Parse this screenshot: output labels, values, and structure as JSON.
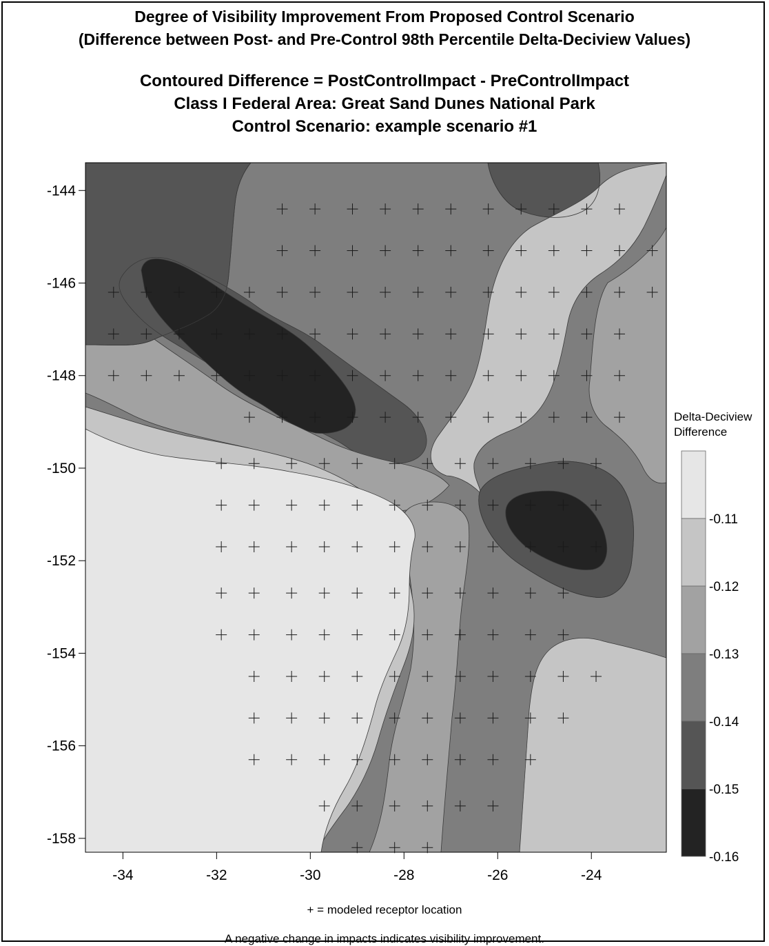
{
  "chart_data": {
    "type": "contour",
    "title": "Degree of Visibility Improvement From Proposed Control Scenario",
    "subtitle": "(Difference between Post- and Pre-Control 98th Percentile Delta-Deciview Values)",
    "subtitle_lines": [
      "Contoured Difference = PostControlImpact - PreControlImpact",
      "Class I Federal Area: Great Sand Dunes National Park",
      "Control Scenario: example scenario #1"
    ],
    "xlabel": "",
    "ylabel": "",
    "xlim": [
      -34.8,
      -22.4
    ],
    "ylim": [
      -158.3,
      -143.4
    ],
    "x_ticks": [
      -34,
      -32,
      -30,
      -28,
      -26,
      -24
    ],
    "y_ticks": [
      -144,
      -146,
      -148,
      -150,
      -152,
      -154,
      -156,
      -158
    ],
    "legend": {
      "title": [
        "Delta-Deciview",
        "Difference"
      ],
      "levels": [
        -0.11,
        -0.12,
        -0.13,
        -0.14,
        -0.15,
        -0.16
      ],
      "colors": [
        "#e6e6e6",
        "#c5c5c5",
        "#a2a2a2",
        "#7e7e7e",
        "#555555",
        "#232323"
      ]
    },
    "receptor_note": "+ = modeled receptor location",
    "footnote": "A negative change in impacts indicates visibility improvement.",
    "receptors": [
      [
        -34.2,
        -146.2
      ],
      [
        -33.5,
        -146.2
      ],
      [
        -32.8,
        -146.2
      ],
      [
        -32.0,
        -146.2
      ],
      [
        -31.3,
        -146.2
      ],
      [
        -30.6,
        -146.2
      ],
      [
        -34.2,
        -147.1
      ],
      [
        -33.5,
        -147.1
      ],
      [
        -32.8,
        -147.1
      ],
      [
        -32.0,
        -147.1
      ],
      [
        -31.3,
        -147.1
      ],
      [
        -30.6,
        -147.1
      ],
      [
        -34.2,
        -148.0
      ],
      [
        -33.5,
        -148.0
      ],
      [
        -32.8,
        -148.0
      ],
      [
        -32.0,
        -148.0
      ],
      [
        -31.3,
        -148.0
      ],
      [
        -30.6,
        -148.0
      ],
      [
        -31.3,
        -148.9
      ],
      [
        -30.6,
        -148.9
      ],
      [
        -30.6,
        -144.4
      ],
      [
        -29.9,
        -144.4
      ],
      [
        -29.1,
        -144.4
      ],
      [
        -28.4,
        -144.4
      ],
      [
        -27.7,
        -144.4
      ],
      [
        -27.0,
        -144.4
      ],
      [
        -26.2,
        -144.4
      ],
      [
        -25.5,
        -144.4
      ],
      [
        -24.8,
        -144.4
      ],
      [
        -24.1,
        -144.4
      ],
      [
        -23.4,
        -144.4
      ],
      [
        -30.6,
        -145.3
      ],
      [
        -29.9,
        -145.3
      ],
      [
        -29.1,
        -145.3
      ],
      [
        -28.4,
        -145.3
      ],
      [
        -27.7,
        -145.3
      ],
      [
        -27.0,
        -145.3
      ],
      [
        -26.2,
        -145.3
      ],
      [
        -25.5,
        -145.3
      ],
      [
        -24.8,
        -145.3
      ],
      [
        -24.1,
        -145.3
      ],
      [
        -23.4,
        -145.3
      ],
      [
        -22.7,
        -145.3
      ],
      [
        -29.9,
        -146.2
      ],
      [
        -29.1,
        -146.2
      ],
      [
        -28.4,
        -146.2
      ],
      [
        -27.7,
        -146.2
      ],
      [
        -27.0,
        -146.2
      ],
      [
        -26.2,
        -146.2
      ],
      [
        -25.5,
        -146.2
      ],
      [
        -24.8,
        -146.2
      ],
      [
        -24.1,
        -146.2
      ],
      [
        -23.4,
        -146.2
      ],
      [
        -22.7,
        -146.2
      ],
      [
        -29.9,
        -147.1
      ],
      [
        -29.1,
        -147.1
      ],
      [
        -28.4,
        -147.1
      ],
      [
        -27.7,
        -147.1
      ],
      [
        -27.0,
        -147.1
      ],
      [
        -26.2,
        -147.1
      ],
      [
        -25.5,
        -147.1
      ],
      [
        -24.8,
        -147.1
      ],
      [
        -24.1,
        -147.1
      ],
      [
        -23.4,
        -147.1
      ],
      [
        -29.9,
        -148.0
      ],
      [
        -29.1,
        -148.0
      ],
      [
        -28.4,
        -148.0
      ],
      [
        -27.7,
        -148.0
      ],
      [
        -27.0,
        -148.0
      ],
      [
        -26.2,
        -148.0
      ],
      [
        -25.5,
        -148.0
      ],
      [
        -24.8,
        -148.0
      ],
      [
        -24.1,
        -148.0
      ],
      [
        -23.4,
        -148.0
      ],
      [
        -29.9,
        -148.9
      ],
      [
        -29.1,
        -148.9
      ],
      [
        -28.4,
        -148.9
      ],
      [
        -27.7,
        -148.9
      ],
      [
        -27.0,
        -148.9
      ],
      [
        -26.2,
        -148.9
      ],
      [
        -25.5,
        -148.9
      ],
      [
        -24.8,
        -148.9
      ],
      [
        -24.1,
        -148.9
      ],
      [
        -23.4,
        -148.9
      ],
      [
        -31.9,
        -149.9
      ],
      [
        -31.2,
        -149.9
      ],
      [
        -30.4,
        -149.9
      ],
      [
        -29.7,
        -149.9
      ],
      [
        -29.0,
        -149.9
      ],
      [
        -28.2,
        -149.9
      ],
      [
        -27.5,
        -149.9
      ],
      [
        -26.8,
        -149.9
      ],
      [
        -26.1,
        -149.9
      ],
      [
        -25.3,
        -149.9
      ],
      [
        -24.6,
        -149.9
      ],
      [
        -23.9,
        -149.9
      ],
      [
        -31.9,
        -150.8
      ],
      [
        -31.2,
        -150.8
      ],
      [
        -30.4,
        -150.8
      ],
      [
        -29.7,
        -150.8
      ],
      [
        -29.0,
        -150.8
      ],
      [
        -28.2,
        -150.8
      ],
      [
        -27.5,
        -150.8
      ],
      [
        -26.8,
        -150.8
      ],
      [
        -26.1,
        -150.8
      ],
      [
        -25.3,
        -150.8
      ],
      [
        -24.6,
        -150.8
      ],
      [
        -23.9,
        -150.8
      ],
      [
        -31.9,
        -151.7
      ],
      [
        -31.2,
        -151.7
      ],
      [
        -30.4,
        -151.7
      ],
      [
        -29.7,
        -151.7
      ],
      [
        -29.0,
        -151.7
      ],
      [
        -28.2,
        -151.7
      ],
      [
        -27.5,
        -151.7
      ],
      [
        -26.8,
        -151.7
      ],
      [
        -26.1,
        -151.7
      ],
      [
        -25.3,
        -151.7
      ],
      [
        -24.6,
        -151.7
      ],
      [
        -23.9,
        -151.7
      ],
      [
        -31.9,
        -152.7
      ],
      [
        -31.2,
        -152.7
      ],
      [
        -30.4,
        -152.7
      ],
      [
        -29.7,
        -152.7
      ],
      [
        -29.0,
        -152.7
      ],
      [
        -28.2,
        -152.7
      ],
      [
        -27.5,
        -152.7
      ],
      [
        -26.8,
        -152.7
      ],
      [
        -26.1,
        -152.7
      ],
      [
        -25.3,
        -152.7
      ],
      [
        -24.6,
        -152.7
      ],
      [
        -31.9,
        -153.6
      ],
      [
        -31.2,
        -153.6
      ],
      [
        -30.4,
        -153.6
      ],
      [
        -29.7,
        -153.6
      ],
      [
        -29.0,
        -153.6
      ],
      [
        -28.2,
        -153.6
      ],
      [
        -27.5,
        -153.6
      ],
      [
        -26.8,
        -153.6
      ],
      [
        -26.1,
        -153.6
      ],
      [
        -25.3,
        -153.6
      ],
      [
        -24.6,
        -153.6
      ],
      [
        -31.2,
        -154.5
      ],
      [
        -30.4,
        -154.5
      ],
      [
        -29.7,
        -154.5
      ],
      [
        -29.0,
        -154.5
      ],
      [
        -28.2,
        -154.5
      ],
      [
        -27.5,
        -154.5
      ],
      [
        -26.8,
        -154.5
      ],
      [
        -26.1,
        -154.5
      ],
      [
        -25.3,
        -154.5
      ],
      [
        -24.6,
        -154.5
      ],
      [
        -23.9,
        -154.5
      ],
      [
        -31.2,
        -155.4
      ],
      [
        -30.4,
        -155.4
      ],
      [
        -29.7,
        -155.4
      ],
      [
        -29.0,
        -155.4
      ],
      [
        -28.2,
        -155.4
      ],
      [
        -27.5,
        -155.4
      ],
      [
        -26.8,
        -155.4
      ],
      [
        -26.1,
        -155.4
      ],
      [
        -25.3,
        -155.4
      ],
      [
        -24.6,
        -155.4
      ],
      [
        -31.2,
        -156.3
      ],
      [
        -30.4,
        -156.3
      ],
      [
        -29.7,
        -156.3
      ],
      [
        -29.0,
        -156.3
      ],
      [
        -28.2,
        -156.3
      ],
      [
        -27.5,
        -156.3
      ],
      [
        -26.8,
        -156.3
      ],
      [
        -26.1,
        -156.3
      ],
      [
        -25.3,
        -156.3
      ],
      [
        -29.7,
        -157.3
      ],
      [
        -29.0,
        -157.3
      ],
      [
        -28.2,
        -157.3
      ],
      [
        -27.5,
        -157.3
      ],
      [
        -26.8,
        -157.3
      ],
      [
        -26.1,
        -157.3
      ],
      [
        -29.0,
        -158.2
      ],
      [
        -28.2,
        -158.2
      ],
      [
        -27.5,
        -158.2
      ]
    ]
  }
}
